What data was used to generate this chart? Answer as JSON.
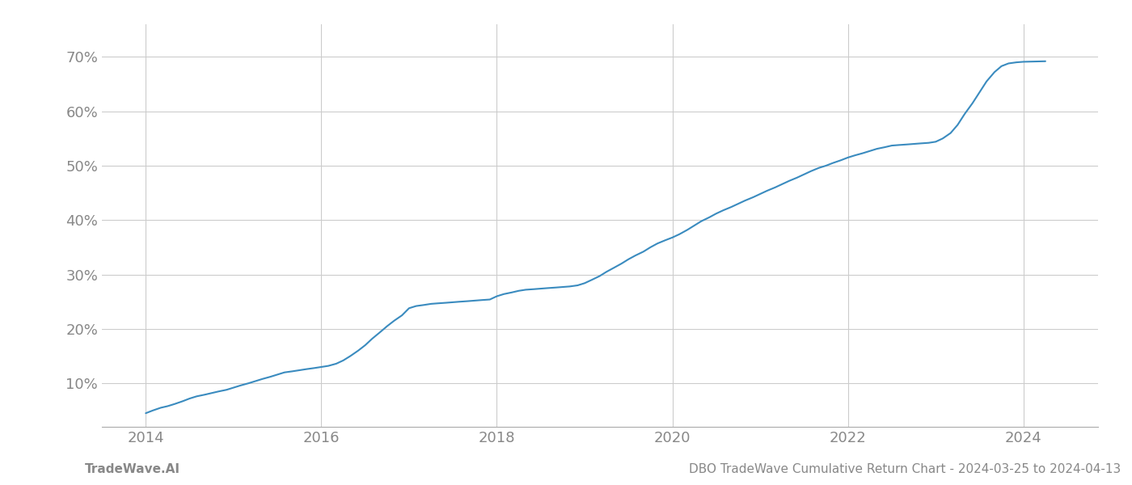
{
  "title": "DBO TradeWave Cumulative Return Chart - 2024-03-25 to 2024-04-13",
  "watermark": "TradeWave.AI",
  "line_color": "#3a8bbf",
  "background_color": "#ffffff",
  "grid_color": "#cccccc",
  "x_years": [
    2014,
    2016,
    2018,
    2020,
    2022,
    2024
  ],
  "xlim": [
    2013.5,
    2024.85
  ],
  "ylim": [
    0.02,
    0.76
  ],
  "yticks": [
    0.1,
    0.2,
    0.3,
    0.4,
    0.5,
    0.6,
    0.7
  ],
  "data_x": [
    2014.0,
    2014.08,
    2014.17,
    2014.25,
    2014.33,
    2014.42,
    2014.5,
    2014.58,
    2014.67,
    2014.75,
    2014.83,
    2014.92,
    2015.0,
    2015.08,
    2015.17,
    2015.25,
    2015.33,
    2015.42,
    2015.5,
    2015.58,
    2015.67,
    2015.75,
    2015.83,
    2015.92,
    2016.0,
    2016.08,
    2016.17,
    2016.25,
    2016.33,
    2016.42,
    2016.5,
    2016.58,
    2016.67,
    2016.75,
    2016.83,
    2016.92,
    2017.0,
    2017.08,
    2017.17,
    2017.25,
    2017.33,
    2017.42,
    2017.5,
    2017.58,
    2017.67,
    2017.75,
    2017.83,
    2017.92,
    2018.0,
    2018.08,
    2018.17,
    2018.25,
    2018.33,
    2018.42,
    2018.5,
    2018.58,
    2018.67,
    2018.75,
    2018.83,
    2018.92,
    2019.0,
    2019.08,
    2019.17,
    2019.25,
    2019.33,
    2019.42,
    2019.5,
    2019.58,
    2019.67,
    2019.75,
    2019.83,
    2019.92,
    2020.0,
    2020.08,
    2020.17,
    2020.25,
    2020.33,
    2020.42,
    2020.5,
    2020.58,
    2020.67,
    2020.75,
    2020.83,
    2020.92,
    2021.0,
    2021.08,
    2021.17,
    2021.25,
    2021.33,
    2021.42,
    2021.5,
    2021.58,
    2021.67,
    2021.75,
    2021.83,
    2021.92,
    2022.0,
    2022.08,
    2022.17,
    2022.25,
    2022.33,
    2022.42,
    2022.5,
    2022.58,
    2022.67,
    2022.75,
    2022.83,
    2022.92,
    2023.0,
    2023.08,
    2023.17,
    2023.25,
    2023.33,
    2023.42,
    2023.5,
    2023.58,
    2023.67,
    2023.75,
    2023.83,
    2023.92,
    2024.0,
    2024.25
  ],
  "data_y": [
    0.045,
    0.05,
    0.055,
    0.058,
    0.062,
    0.067,
    0.072,
    0.076,
    0.079,
    0.082,
    0.085,
    0.088,
    0.092,
    0.096,
    0.1,
    0.104,
    0.108,
    0.112,
    0.116,
    0.12,
    0.122,
    0.124,
    0.126,
    0.128,
    0.13,
    0.132,
    0.136,
    0.142,
    0.15,
    0.16,
    0.17,
    0.182,
    0.194,
    0.205,
    0.215,
    0.225,
    0.238,
    0.242,
    0.244,
    0.246,
    0.247,
    0.248,
    0.249,
    0.25,
    0.251,
    0.252,
    0.253,
    0.254,
    0.26,
    0.264,
    0.267,
    0.27,
    0.272,
    0.273,
    0.274,
    0.275,
    0.276,
    0.277,
    0.278,
    0.28,
    0.284,
    0.29,
    0.297,
    0.305,
    0.312,
    0.32,
    0.328,
    0.335,
    0.342,
    0.35,
    0.357,
    0.363,
    0.368,
    0.374,
    0.382,
    0.39,
    0.398,
    0.405,
    0.412,
    0.418,
    0.424,
    0.43,
    0.436,
    0.442,
    0.448,
    0.454,
    0.46,
    0.466,
    0.472,
    0.478,
    0.484,
    0.49,
    0.496,
    0.5,
    0.505,
    0.51,
    0.515,
    0.519,
    0.523,
    0.527,
    0.531,
    0.534,
    0.537,
    0.538,
    0.539,
    0.54,
    0.541,
    0.542,
    0.544,
    0.55,
    0.56,
    0.575,
    0.595,
    0.615,
    0.635,
    0.655,
    0.672,
    0.683,
    0.688,
    0.69,
    0.691,
    0.692
  ],
  "title_fontsize": 11,
  "watermark_fontsize": 11,
  "tick_fontsize": 13,
  "tick_color": "#888888",
  "spine_color": "#aaaaaa"
}
